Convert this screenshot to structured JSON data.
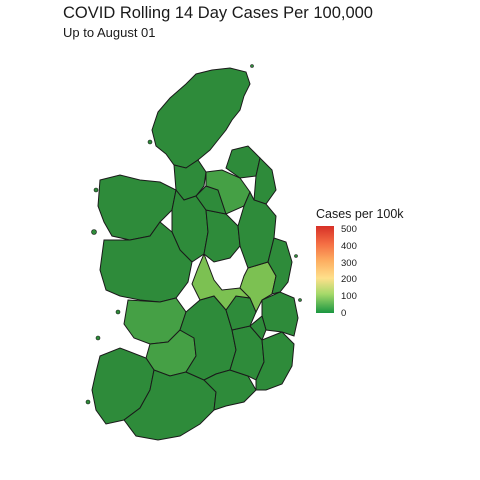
{
  "title": "COVID Rolling 14 Day Cases Per 100,000",
  "subtitle": "Up to August 01",
  "legend": {
    "title": "Cases per 100k",
    "ticks": [
      "500",
      "400",
      "300",
      "200",
      "100",
      "0"
    ],
    "colors": [
      "#d73027",
      "#f46d43",
      "#fdae61",
      "#fee08b",
      "#a6d96a",
      "#1a9641"
    ]
  },
  "map": {
    "base_color": "#2e8b3a",
    "highlight_color": "#7cc152",
    "mid_color": "#45a045",
    "border_color": "#1a1a1a"
  }
}
